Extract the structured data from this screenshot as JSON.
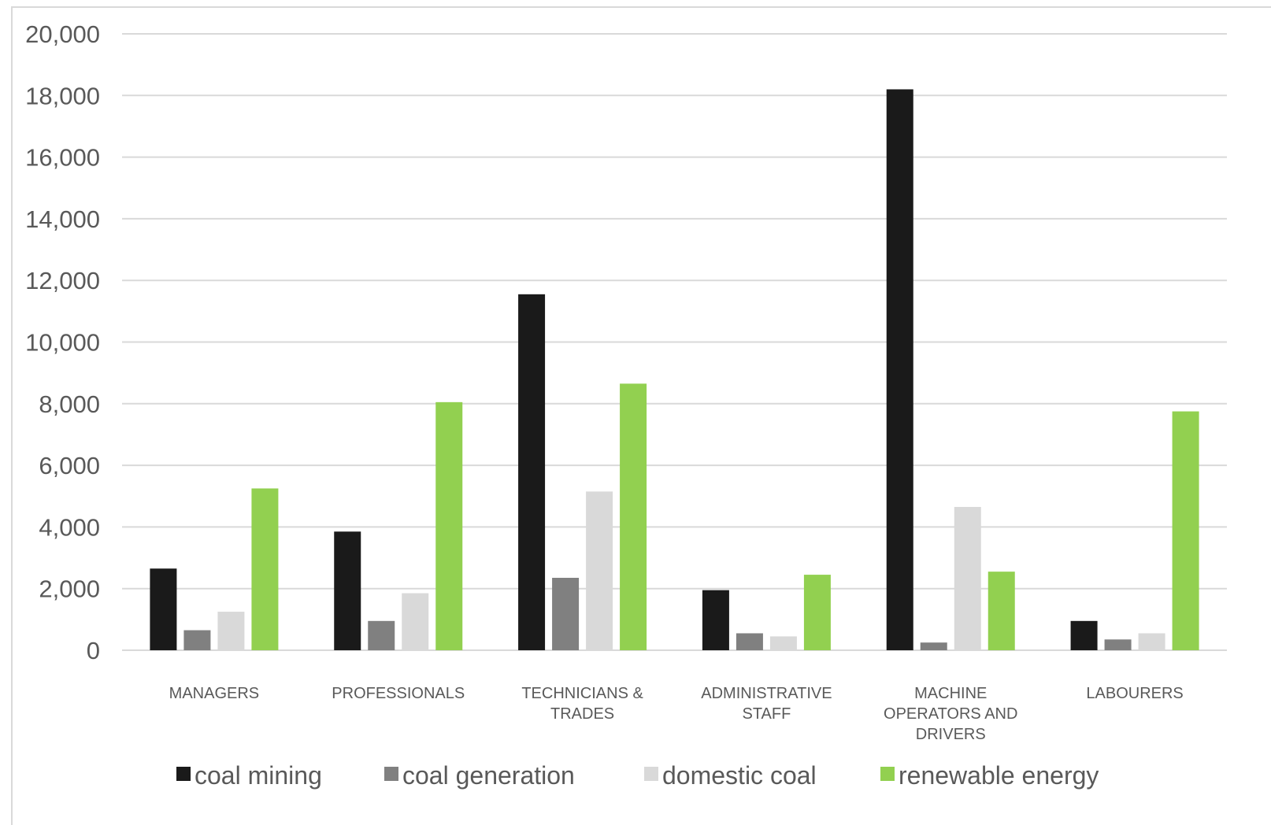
{
  "chart_data": {
    "type": "bar",
    "title": "",
    "xlabel": "",
    "ylabel": "",
    "ylim": [
      0,
      20000
    ],
    "yticks": [
      0,
      2000,
      4000,
      6000,
      8000,
      10000,
      12000,
      14000,
      16000,
      18000,
      20000
    ],
    "ytick_labels": [
      "0",
      "2,000",
      "4,000",
      "6,000",
      "8,000",
      "10,000",
      "12,000",
      "14,000",
      "16,000",
      "18,000",
      "20,000"
    ],
    "grid": true,
    "legend_position": "bottom",
    "categories": [
      [
        "MANAGERS"
      ],
      [
        "PROFESSIONALS"
      ],
      [
        "TECHNICIANS &",
        "TRADES"
      ],
      [
        "ADMINISTRATIVE",
        "STAFF"
      ],
      [
        "MACHINE",
        "OPERATORS AND",
        "DRIVERS"
      ],
      [
        "LABOURERS"
      ]
    ],
    "series": [
      {
        "name": "coal mining",
        "color": "#1a1a1a",
        "values": [
          2650,
          3850,
          11550,
          1950,
          18200,
          950
        ]
      },
      {
        "name": "coal generation",
        "color": "#808080",
        "values": [
          650,
          950,
          2350,
          550,
          250,
          350
        ]
      },
      {
        "name": "domestic coal",
        "color": "#d9d9d9",
        "values": [
          1250,
          1850,
          5150,
          450,
          4650,
          550
        ]
      },
      {
        "name": "renewable energy",
        "color": "#92d050",
        "values": [
          5250,
          8050,
          8650,
          2450,
          2550,
          7750
        ]
      }
    ],
    "gridline_color": "#d9d9d9",
    "text_color": "#595959"
  }
}
